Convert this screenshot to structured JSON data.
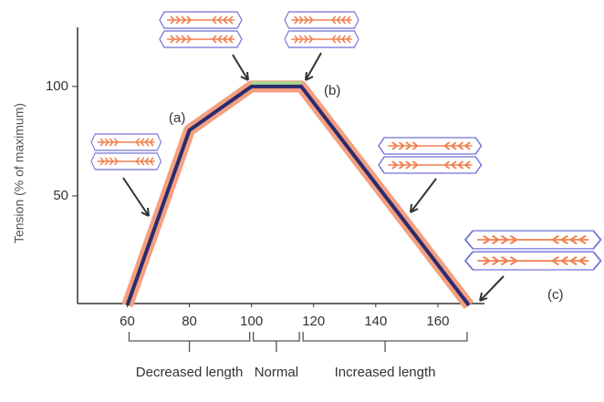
{
  "chart_data": {
    "type": "line",
    "y_label": "Tension (% of maximum)",
    "x": [
      60,
      80,
      100,
      116,
      170
    ],
    "values": [
      0,
      80,
      100,
      100,
      0
    ],
    "color": "#2b2b6e",
    "glow_color": "#f4a080",
    "plateau_color": "#a8d890",
    "xlim": [
      44,
      175
    ],
    "ylim": [
      0,
      127
    ],
    "xticks": [
      60,
      80,
      100,
      120,
      140,
      160
    ],
    "yticks": [
      50,
      100
    ],
    "annotations": [
      "(a)",
      "(b)",
      "(c)"
    ],
    "regions": [
      {
        "label": "Decreased length",
        "from": 60,
        "to": 100
      },
      {
        "label": "Normal",
        "from": 100,
        "to": 116
      },
      {
        "label": "Increased length",
        "from": 116,
        "to": 170
      }
    ]
  }
}
